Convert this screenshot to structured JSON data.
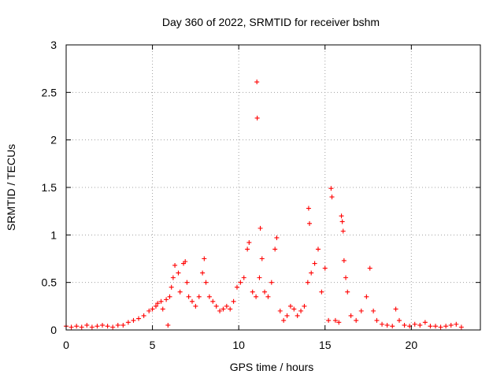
{
  "chart_data": {
    "type": "scatter",
    "title": "Day 360 of 2022, SRMTID for receiver bshm",
    "xlabel": "GPS time / hours",
    "ylabel": "SRMTID / TECUs",
    "xlim": [
      0,
      24
    ],
    "ylim": [
      0,
      3
    ],
    "x_ticks": [
      0,
      5,
      10,
      15,
      20
    ],
    "x_tick_labels": [
      "0",
      "5",
      "10",
      "15",
      "20"
    ],
    "y_ticks": [
      0,
      0.5,
      1,
      1.5,
      2,
      2.5,
      3
    ],
    "y_tick_labels": [
      "0",
      "0.5",
      "1",
      "1.5",
      "2",
      "2.5",
      "3"
    ],
    "grid": true,
    "marker": "+",
    "color": "#ff0000",
    "series": [
      {
        "name": "SRMTID",
        "points": [
          [
            0.0,
            0.04
          ],
          [
            0.3,
            0.03
          ],
          [
            0.6,
            0.04
          ],
          [
            0.9,
            0.03
          ],
          [
            1.2,
            0.05
          ],
          [
            1.5,
            0.03
          ],
          [
            1.8,
            0.04
          ],
          [
            2.1,
            0.05
          ],
          [
            2.4,
            0.04
          ],
          [
            2.7,
            0.03
          ],
          [
            3.0,
            0.05
          ],
          [
            3.3,
            0.05
          ],
          [
            3.6,
            0.08
          ],
          [
            3.9,
            0.1
          ],
          [
            4.2,
            0.12
          ],
          [
            4.5,
            0.15
          ],
          [
            4.8,
            0.2
          ],
          [
            5.0,
            0.22
          ],
          [
            5.2,
            0.25
          ],
          [
            5.3,
            0.28
          ],
          [
            5.5,
            0.3
          ],
          [
            5.6,
            0.22
          ],
          [
            5.8,
            0.32
          ],
          [
            5.9,
            0.05
          ],
          [
            6.0,
            0.35
          ],
          [
            6.1,
            0.45
          ],
          [
            6.2,
            0.55
          ],
          [
            6.3,
            0.68
          ],
          [
            6.5,
            0.6
          ],
          [
            6.6,
            0.4
          ],
          [
            6.8,
            0.7
          ],
          [
            6.9,
            0.72
          ],
          [
            7.0,
            0.5
          ],
          [
            7.1,
            0.35
          ],
          [
            7.3,
            0.3
          ],
          [
            7.5,
            0.25
          ],
          [
            7.7,
            0.35
          ],
          [
            7.9,
            0.6
          ],
          [
            8.0,
            0.75
          ],
          [
            8.1,
            0.5
          ],
          [
            8.3,
            0.35
          ],
          [
            8.5,
            0.3
          ],
          [
            8.7,
            0.25
          ],
          [
            8.9,
            0.2
          ],
          [
            9.1,
            0.22
          ],
          [
            9.3,
            0.25
          ],
          [
            9.5,
            0.22
          ],
          [
            9.7,
            0.3
          ],
          [
            9.9,
            0.45
          ],
          [
            10.1,
            0.5
          ],
          [
            10.3,
            0.55
          ],
          [
            10.5,
            0.85
          ],
          [
            10.6,
            0.92
          ],
          [
            10.8,
            0.4
          ],
          [
            11.0,
            0.35
          ],
          [
            11.05,
            2.61
          ],
          [
            11.07,
            2.23
          ],
          [
            11.2,
            0.55
          ],
          [
            11.25,
            1.07
          ],
          [
            11.35,
            0.75
          ],
          [
            11.5,
            0.4
          ],
          [
            11.7,
            0.35
          ],
          [
            11.9,
            0.5
          ],
          [
            12.1,
            0.85
          ],
          [
            12.2,
            0.97
          ],
          [
            12.4,
            0.2
          ],
          [
            12.6,
            0.1
          ],
          [
            12.8,
            0.15
          ],
          [
            13.0,
            0.25
          ],
          [
            13.2,
            0.22
          ],
          [
            13.4,
            0.15
          ],
          [
            13.6,
            0.2
          ],
          [
            13.8,
            0.25
          ],
          [
            14.0,
            0.5
          ],
          [
            14.05,
            1.28
          ],
          [
            14.1,
            1.12
          ],
          [
            14.2,
            0.6
          ],
          [
            14.4,
            0.7
          ],
          [
            14.6,
            0.85
          ],
          [
            14.8,
            0.4
          ],
          [
            15.0,
            0.65
          ],
          [
            15.2,
            0.1
          ],
          [
            15.35,
            1.49
          ],
          [
            15.4,
            1.4
          ],
          [
            15.6,
            0.1
          ],
          [
            15.8,
            0.08
          ],
          [
            15.95,
            1.2
          ],
          [
            16.0,
            1.14
          ],
          [
            16.05,
            1.04
          ],
          [
            16.1,
            0.73
          ],
          [
            16.2,
            0.55
          ],
          [
            16.3,
            0.4
          ],
          [
            16.5,
            0.15
          ],
          [
            16.8,
            0.1
          ],
          [
            17.1,
            0.2
          ],
          [
            17.4,
            0.35
          ],
          [
            17.6,
            0.65
          ],
          [
            17.8,
            0.2
          ],
          [
            18.0,
            0.1
          ],
          [
            18.3,
            0.06
          ],
          [
            18.6,
            0.05
          ],
          [
            18.9,
            0.04
          ],
          [
            19.1,
            0.22
          ],
          [
            19.3,
            0.1
          ],
          [
            19.6,
            0.05
          ],
          [
            19.9,
            0.04
          ],
          [
            20.2,
            0.06
          ],
          [
            20.5,
            0.05
          ],
          [
            20.8,
            0.08
          ],
          [
            21.1,
            0.04
          ],
          [
            21.4,
            0.04
          ],
          [
            21.7,
            0.03
          ],
          [
            22.0,
            0.04
          ],
          [
            22.3,
            0.05
          ],
          [
            22.6,
            0.06
          ],
          [
            22.9,
            0.03
          ]
        ]
      }
    ]
  }
}
